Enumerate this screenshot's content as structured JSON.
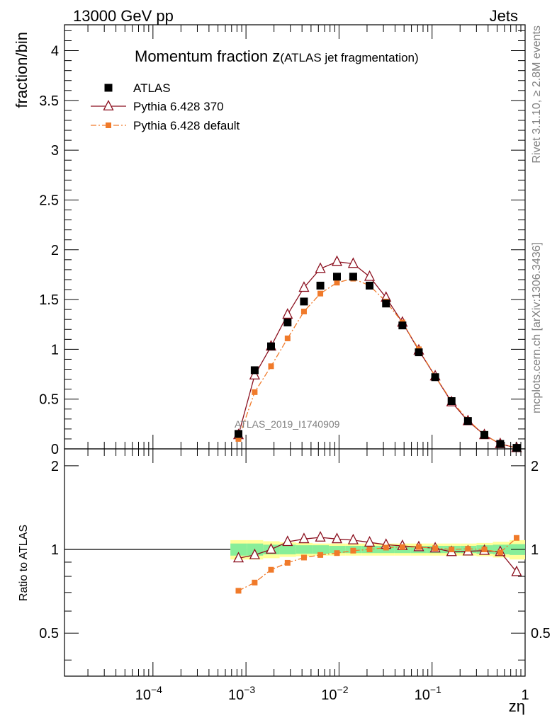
{
  "chart_data": {
    "type": "scatter",
    "header_left": "13000 GeV pp",
    "header_right": "Jets",
    "title_main": "Momentum fraction z",
    "title_sub": "(ATLAS jet fragmentation)",
    "ylabel": "fraction/bin",
    "ratio_ylabel": "Ratio to ATLAS",
    "xlabel": "zη",
    "side_label_top": "Rivet 3.1.10, ≥ 2.8M events",
    "side_label_bottom": "mcplots.cern.ch [arXiv:1306.3436]",
    "watermark": "ATLAS_2019_I1740909",
    "x_scale": "log",
    "xlim": [
      1.12e-05,
      1.0
    ],
    "ylim": [
      0,
      4.26
    ],
    "ratio_ylim": [
      0.35,
      2.3
    ],
    "yticks": [
      0,
      0.5,
      1,
      1.5,
      2,
      2.5,
      3,
      3.5,
      4
    ],
    "ytick_labels": [
      "0",
      "0.5",
      "1",
      "1.5",
      "2",
      "2.5",
      "3",
      "3.5",
      "4"
    ],
    "ratio_yticks": [
      0.5,
      1,
      2
    ],
    "ratio_ytick_labels": [
      "0.5",
      "1",
      "2"
    ],
    "xtick_labels": [
      {
        "base": "10",
        "exp": "−4",
        "value": 0.0001
      },
      {
        "base": "10",
        "exp": "−3",
        "value": 0.001
      },
      {
        "base": "10",
        "exp": "−2",
        "value": 0.01
      },
      {
        "base": "10",
        "exp": "−1",
        "value": 0.1
      },
      {
        "base": "1",
        "exp": "",
        "value": 1
      }
    ],
    "x": [
      0.00083,
      0.00124,
      0.00186,
      0.0028,
      0.0042,
      0.0063,
      0.0095,
      0.0142,
      0.0213,
      0.032,
      0.048,
      0.072,
      0.108,
      0.162,
      0.243,
      0.365,
      0.54,
      0.81
    ],
    "bin_edges": [
      0.00068,
      0.00102,
      0.00153,
      0.0023,
      0.00345,
      0.0052,
      0.0078,
      0.0117,
      0.0175,
      0.0263,
      0.0394,
      0.059,
      0.0886,
      0.133,
      0.2,
      0.3,
      0.45,
      0.68,
      1.0
    ],
    "band_inner": [
      0.05,
      0.05,
      0.04,
      0.04,
      0.035,
      0.035,
      0.03,
      0.03,
      0.03,
      0.03,
      0.03,
      0.03,
      0.03,
      0.03,
      0.03,
      0.035,
      0.04,
      0.045
    ],
    "band_outer": [
      0.08,
      0.08,
      0.07,
      0.06,
      0.055,
      0.05,
      0.05,
      0.05,
      0.05,
      0.05,
      0.05,
      0.05,
      0.05,
      0.05,
      0.05,
      0.055,
      0.065,
      0.08
    ],
    "series": [
      {
        "name": "ATLAS",
        "role": "data",
        "color": "#000000",
        "marker": "square",
        "values": [
          0.15,
          0.79,
          1.03,
          1.27,
          1.48,
          1.64,
          1.73,
          1.73,
          1.64,
          1.46,
          1.24,
          0.97,
          0.72,
          0.48,
          0.28,
          0.14,
          0.05,
          0.01
        ]
      },
      {
        "name": "Pythia 6.428 370",
        "role": "mc",
        "color": "#8b0f1e",
        "marker": "triangle",
        "line": "solid",
        "values": [
          0.14,
          0.74,
          1.03,
          1.35,
          1.62,
          1.81,
          1.88,
          1.86,
          1.73,
          1.52,
          1.27,
          0.99,
          0.73,
          0.47,
          0.28,
          0.14,
          0.05,
          0.01
        ],
        "ratio": [
          0.93,
          0.955,
          1.0,
          1.065,
          1.09,
          1.105,
          1.09,
          1.08,
          1.06,
          1.04,
          1.03,
          1.02,
          1.01,
          0.98,
          0.985,
          0.99,
          0.98,
          0.83
        ]
      },
      {
        "name": "Pythia 6.428 default",
        "role": "mc",
        "color": "#f07a2a",
        "marker": "square-small",
        "line": "dashdot",
        "values": [
          0.1,
          0.57,
          0.83,
          1.11,
          1.38,
          1.56,
          1.67,
          1.71,
          1.64,
          1.48,
          1.27,
          1.0,
          0.73,
          0.48,
          0.29,
          0.14,
          0.05,
          0.01
        ],
        "ratio": [
          0.71,
          0.76,
          0.845,
          0.895,
          0.935,
          0.955,
          0.97,
          0.99,
          1.0,
          1.015,
          1.02,
          1.02,
          1.01,
          1.0,
          1.005,
          1.0,
          0.975,
          1.1
        ]
      }
    ],
    "colors": {
      "band_inner": "#88ee99",
      "band_outer": "#ffff99",
      "axis": "#000000"
    }
  }
}
